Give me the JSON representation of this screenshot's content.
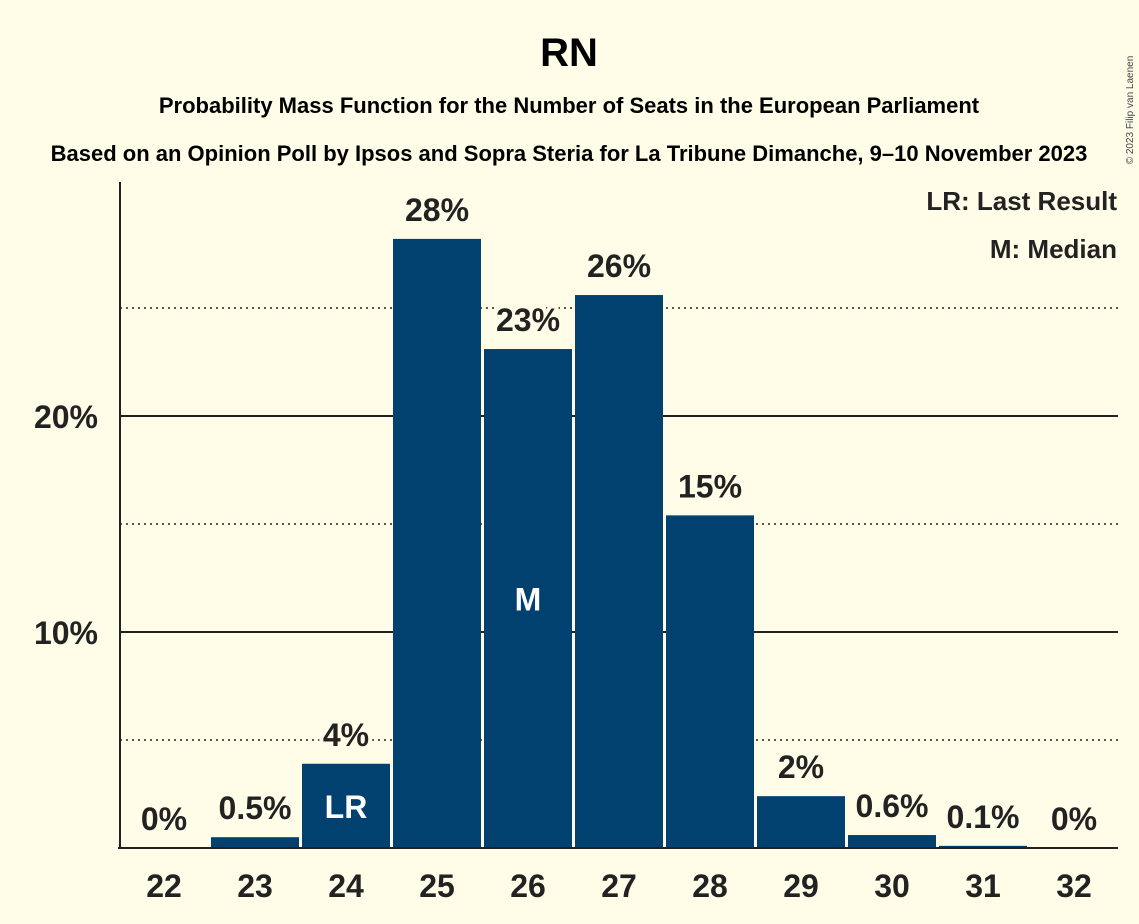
{
  "header": {
    "title": "RN",
    "subtitle1": "Probability Mass Function for the Number of Seats in the European Parliament",
    "subtitle2": "Based on an Opinion Poll by Ipsos and Sopra Steria for La Tribune Dimanche, 9–10 November 2023"
  },
  "legend": {
    "last_result": "LR: Last Result",
    "median": "M: Median"
  },
  "copyright": "© 2023 Filip van Laenen",
  "colors": {
    "bar": "#004170",
    "background": "#FFFDE8"
  },
  "chart_data": {
    "type": "bar",
    "title": "RN",
    "subtitle": "Probability Mass Function for the Number of Seats in the European Parliament",
    "categories": [
      "22",
      "23",
      "24",
      "25",
      "26",
      "27",
      "28",
      "29",
      "30",
      "31",
      "32"
    ],
    "values": [
      0,
      0.5,
      3.9,
      28.2,
      23.1,
      25.6,
      15.4,
      2.4,
      0.6,
      0.1,
      0
    ],
    "labels": [
      "0%",
      "0.5%",
      "4%",
      "28%",
      "23%",
      "26%",
      "15%",
      "2%",
      "0.6%",
      "0.1%",
      "0%"
    ],
    "y_ticks": [
      {
        "value": 10,
        "label": "10%"
      },
      {
        "value": 20,
        "label": "20%"
      }
    ],
    "ylim": [
      0,
      30
    ],
    "grid": "solid at 10% steps, dotted at 5% steps",
    "last_result": {
      "category": "24",
      "marker": "LR"
    },
    "median": {
      "category": "26",
      "marker": "M"
    },
    "legend_position": "top-right"
  }
}
